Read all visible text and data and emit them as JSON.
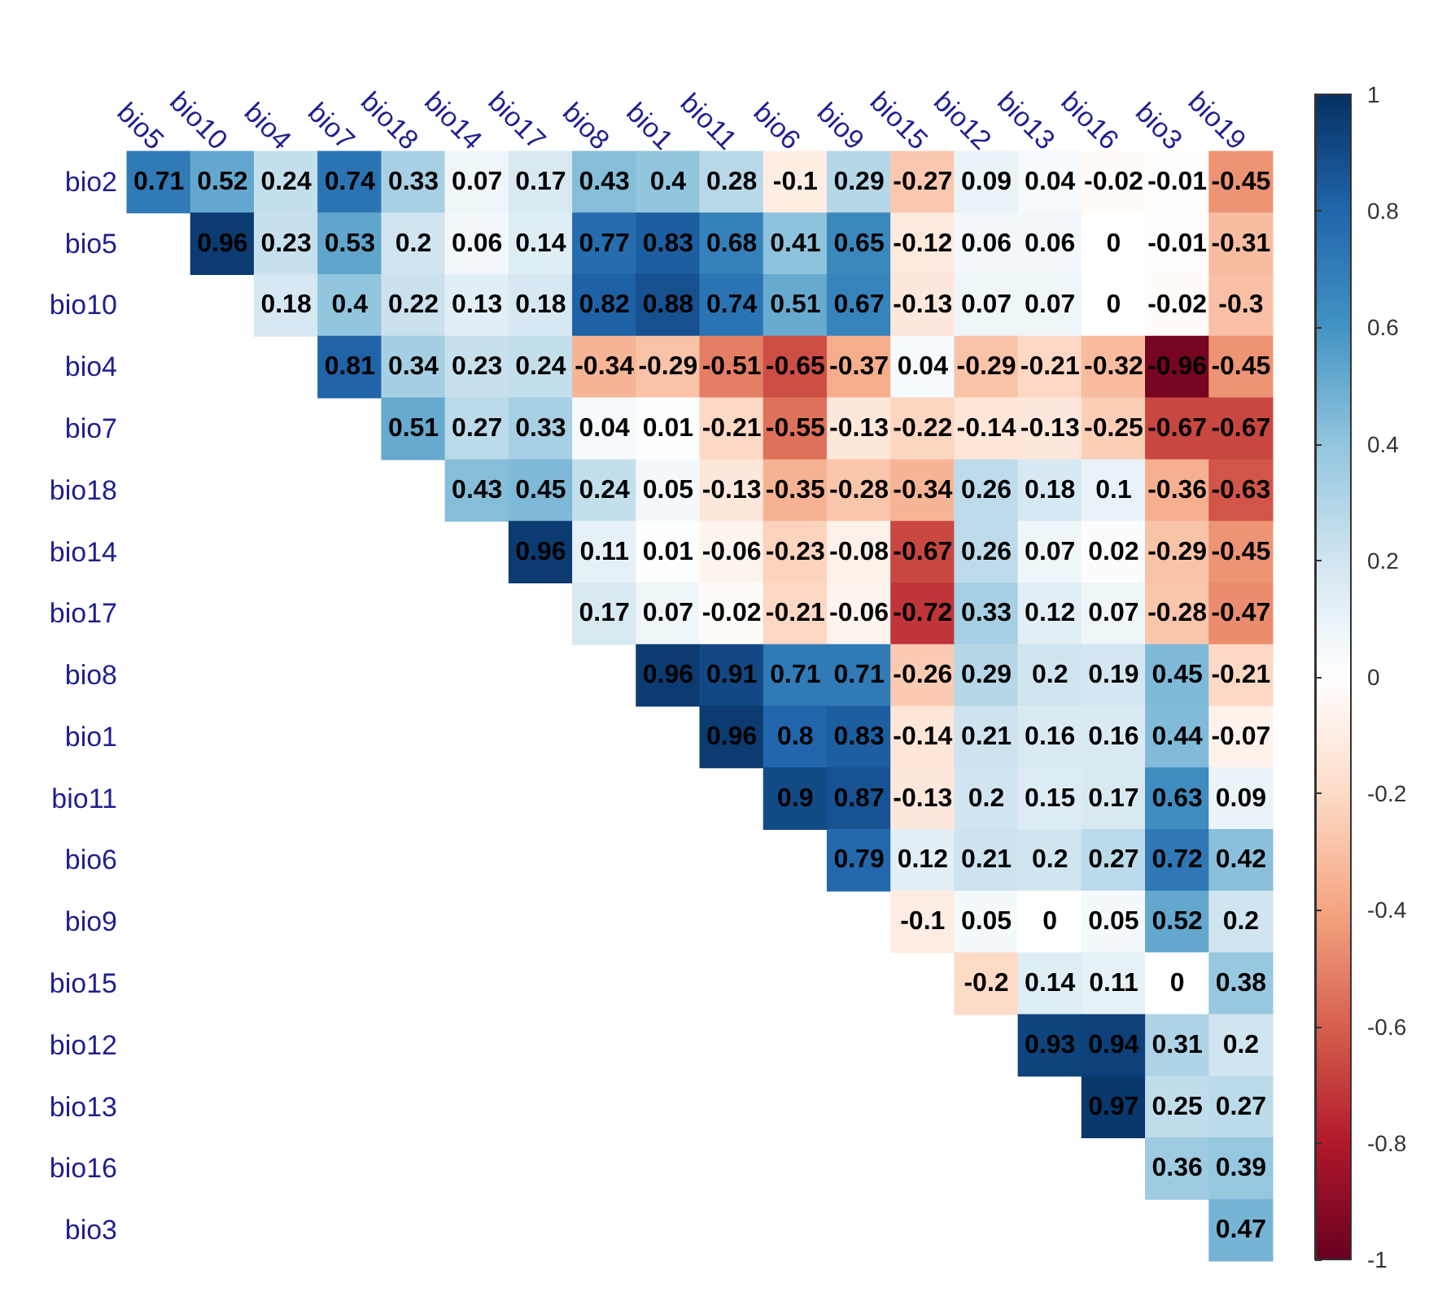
{
  "chart_data": {
    "type": "heatmap",
    "categories": [
      "bio5",
      "bio10",
      "bio4",
      "bio7",
      "bio18",
      "bio14",
      "bio17",
      "bio8",
      "bio1",
      "bio11",
      "bio6",
      "bio9",
      "bio15",
      "bio12",
      "bio13",
      "bio16",
      "bio3",
      "bio19"
    ],
    "y_categories": [
      "bio2",
      "bio5",
      "bio10",
      "bio4",
      "bio7",
      "bio18",
      "bio14",
      "bio17",
      "bio8",
      "bio1",
      "bio11",
      "bio6",
      "bio9",
      "bio15",
      "bio12",
      "bio13",
      "bio16",
      "bio3"
    ],
    "cells": [
      [
        0.71,
        0.52,
        0.24,
        0.74,
        0.33,
        0.07,
        0.17,
        0.43,
        0.4,
        0.28,
        -0.1,
        0.29,
        -0.27,
        0.09,
        0.04,
        -0.02,
        -0.01,
        -0.45
      ],
      [
        null,
        0.96,
        0.23,
        0.53,
        0.2,
        0.06,
        0.14,
        0.77,
        0.83,
        0.68,
        0.41,
        0.65,
        -0.12,
        0.06,
        0.06,
        0,
        -0.01,
        -0.31
      ],
      [
        null,
        null,
        0.18,
        0.4,
        0.22,
        0.13,
        0.18,
        0.82,
        0.88,
        0.74,
        0.51,
        0.67,
        -0.13,
        0.07,
        0.07,
        0,
        -0.02,
        -0.3
      ],
      [
        null,
        null,
        null,
        0.81,
        0.34,
        0.23,
        0.24,
        -0.34,
        -0.29,
        -0.51,
        -0.65,
        -0.37,
        0.04,
        -0.29,
        -0.21,
        -0.32,
        -0.96,
        -0.45
      ],
      [
        null,
        null,
        null,
        null,
        0.51,
        0.27,
        0.33,
        0.04,
        0.01,
        -0.21,
        -0.55,
        -0.13,
        -0.22,
        -0.14,
        -0.13,
        -0.25,
        -0.67,
        -0.67
      ],
      [
        null,
        null,
        null,
        null,
        null,
        0.43,
        0.45,
        0.24,
        0.05,
        -0.13,
        -0.35,
        -0.28,
        -0.34,
        0.26,
        0.18,
        0.1,
        -0.36,
        -0.63
      ],
      [
        null,
        null,
        null,
        null,
        null,
        null,
        0.96,
        0.11,
        0.01,
        -0.06,
        -0.23,
        -0.08,
        -0.67,
        0.26,
        0.07,
        0.02,
        -0.29,
        -0.45
      ],
      [
        null,
        null,
        null,
        null,
        null,
        null,
        null,
        0.17,
        0.07,
        -0.02,
        -0.21,
        -0.06,
        -0.72,
        0.33,
        0.12,
        0.07,
        -0.28,
        -0.47
      ],
      [
        null,
        null,
        null,
        null,
        null,
        null,
        null,
        null,
        0.96,
        0.91,
        0.71,
        0.71,
        -0.26,
        0.29,
        0.2,
        0.19,
        0.45,
        -0.21
      ],
      [
        null,
        null,
        null,
        null,
        null,
        null,
        null,
        null,
        null,
        0.96,
        0.8,
        0.83,
        -0.14,
        0.21,
        0.16,
        0.16,
        0.44,
        -0.07
      ],
      [
        null,
        null,
        null,
        null,
        null,
        null,
        null,
        null,
        null,
        null,
        0.9,
        0.87,
        -0.13,
        0.2,
        0.15,
        0.17,
        0.63,
        0.09
      ],
      [
        null,
        null,
        null,
        null,
        null,
        null,
        null,
        null,
        null,
        null,
        null,
        0.79,
        0.12,
        0.21,
        0.2,
        0.27,
        0.72,
        0.42
      ],
      [
        null,
        null,
        null,
        null,
        null,
        null,
        null,
        null,
        null,
        null,
        null,
        null,
        -0.1,
        0.05,
        0,
        0.05,
        0.52,
        0.2
      ],
      [
        null,
        null,
        null,
        null,
        null,
        null,
        null,
        null,
        null,
        null,
        null,
        null,
        null,
        -0.2,
        0.14,
        0.11,
        0,
        0.38
      ],
      [
        null,
        null,
        null,
        null,
        null,
        null,
        null,
        null,
        null,
        null,
        null,
        null,
        null,
        null,
        0.93,
        0.94,
        0.31,
        0.2
      ],
      [
        null,
        null,
        null,
        null,
        null,
        null,
        null,
        null,
        null,
        null,
        null,
        null,
        null,
        null,
        null,
        0.97,
        0.25,
        0.27
      ],
      [
        null,
        null,
        null,
        null,
        null,
        null,
        null,
        null,
        null,
        null,
        null,
        null,
        null,
        null,
        null,
        null,
        0.36,
        0.39
      ],
      [
        null,
        null,
        null,
        null,
        null,
        null,
        null,
        null,
        null,
        null,
        null,
        null,
        null,
        null,
        null,
        null,
        null,
        0.47
      ]
    ],
    "data_labels": true,
    "clim": [
      -1,
      1
    ],
    "cticks": [
      -1,
      -0.8,
      -0.6,
      -0.4,
      -0.2,
      0,
      0.2,
      0.4,
      0.6,
      0.8,
      1
    ]
  }
}
